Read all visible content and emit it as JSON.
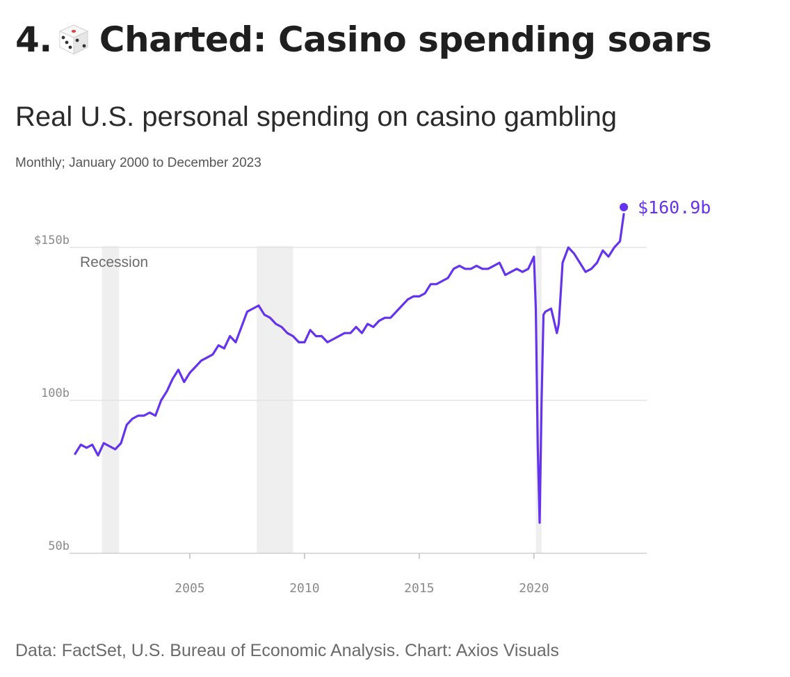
{
  "header": {
    "number": "4.",
    "icon": "game-die-icon",
    "title": "Charted: Casino spending soars"
  },
  "source_note": "Data: FactSet, U.S. Bureau of Economic Analysis. Chart: Axios Visuals",
  "chart_data": {
    "type": "line",
    "title": "Real U.S. personal spending on casino gambling",
    "subtitle": "Monthly; January 2000 to December 2023",
    "xlabel": "",
    "ylabel": "",
    "x_ticks": [
      2005,
      2010,
      2015,
      2020
    ],
    "y_ticks": [
      {
        "value": 50,
        "label": "50b"
      },
      {
        "value": 100,
        "label": "100b"
      },
      {
        "value": 150,
        "label": "$150b"
      }
    ],
    "ylim": [
      50,
      165
    ],
    "xlim": [
      "2000-01",
      "2024-12"
    ],
    "grid": "horizontal",
    "line_color": "#6533ee",
    "recession_color": "#efefef",
    "annotation_label": "Recession",
    "end_label": "$160.9b",
    "recessions": [
      {
        "start": "2001-03",
        "end": "2001-11"
      },
      {
        "start": "2007-12",
        "end": "2009-06"
      },
      {
        "start": "2020-02",
        "end": "2020-04"
      }
    ],
    "series": [
      {
        "name": "",
        "x": [
          "2000-01",
          "2000-04",
          "2000-07",
          "2000-10",
          "2001-01",
          "2001-04",
          "2001-07",
          "2001-10",
          "2002-01",
          "2002-04",
          "2002-07",
          "2002-10",
          "2003-01",
          "2003-04",
          "2003-07",
          "2003-10",
          "2004-01",
          "2004-04",
          "2004-07",
          "2004-10",
          "2005-01",
          "2005-04",
          "2005-07",
          "2005-10",
          "2006-01",
          "2006-04",
          "2006-07",
          "2006-10",
          "2007-01",
          "2007-04",
          "2007-07",
          "2007-10",
          "2008-01",
          "2008-04",
          "2008-07",
          "2008-10",
          "2009-01",
          "2009-04",
          "2009-07",
          "2009-10",
          "2010-01",
          "2010-04",
          "2010-07",
          "2010-10",
          "2011-01",
          "2011-04",
          "2011-07",
          "2011-10",
          "2012-01",
          "2012-04",
          "2012-07",
          "2012-10",
          "2013-01",
          "2013-04",
          "2013-07",
          "2013-10",
          "2014-01",
          "2014-04",
          "2014-07",
          "2014-10",
          "2015-01",
          "2015-04",
          "2015-07",
          "2015-10",
          "2016-01",
          "2016-04",
          "2016-07",
          "2016-10",
          "2017-01",
          "2017-04",
          "2017-07",
          "2017-10",
          "2018-01",
          "2018-04",
          "2018-07",
          "2018-10",
          "2019-01",
          "2019-04",
          "2019-07",
          "2019-10",
          "2020-01",
          "2020-02",
          "2020-03",
          "2020-04",
          "2020-05",
          "2020-06",
          "2020-07",
          "2020-10",
          "2021-01",
          "2021-02",
          "2021-03",
          "2021-04",
          "2021-07",
          "2021-10",
          "2022-01",
          "2022-04",
          "2022-07",
          "2022-10",
          "2023-01",
          "2023-04",
          "2023-07",
          "2023-10",
          "2023-12"
        ],
        "values": [
          82.5,
          85.5,
          84.5,
          85.5,
          82,
          86,
          85,
          84,
          86,
          92,
          94,
          95,
          95,
          96,
          95,
          100,
          103,
          107,
          110,
          106,
          109,
          111,
          113,
          114,
          115,
          118,
          117,
          121,
          119,
          124,
          129,
          130,
          131,
          128,
          127,
          125,
          124,
          122,
          121,
          119,
          119,
          123,
          121,
          121,
          119,
          120,
          121,
          122,
          122,
          124,
          122,
          125,
          124,
          126,
          127,
          127,
          129,
          131,
          133,
          134,
          134,
          135,
          138,
          138,
          139,
          140,
          143,
          144,
          143,
          143,
          144,
          143,
          143,
          144,
          145,
          141,
          142,
          143,
          142,
          143,
          147,
          130,
          85,
          60,
          100,
          128,
          129,
          130,
          122,
          125,
          135,
          145,
          150,
          148,
          145,
          142,
          143,
          145,
          149,
          147,
          150,
          152,
          160.9
        ]
      }
    ]
  }
}
